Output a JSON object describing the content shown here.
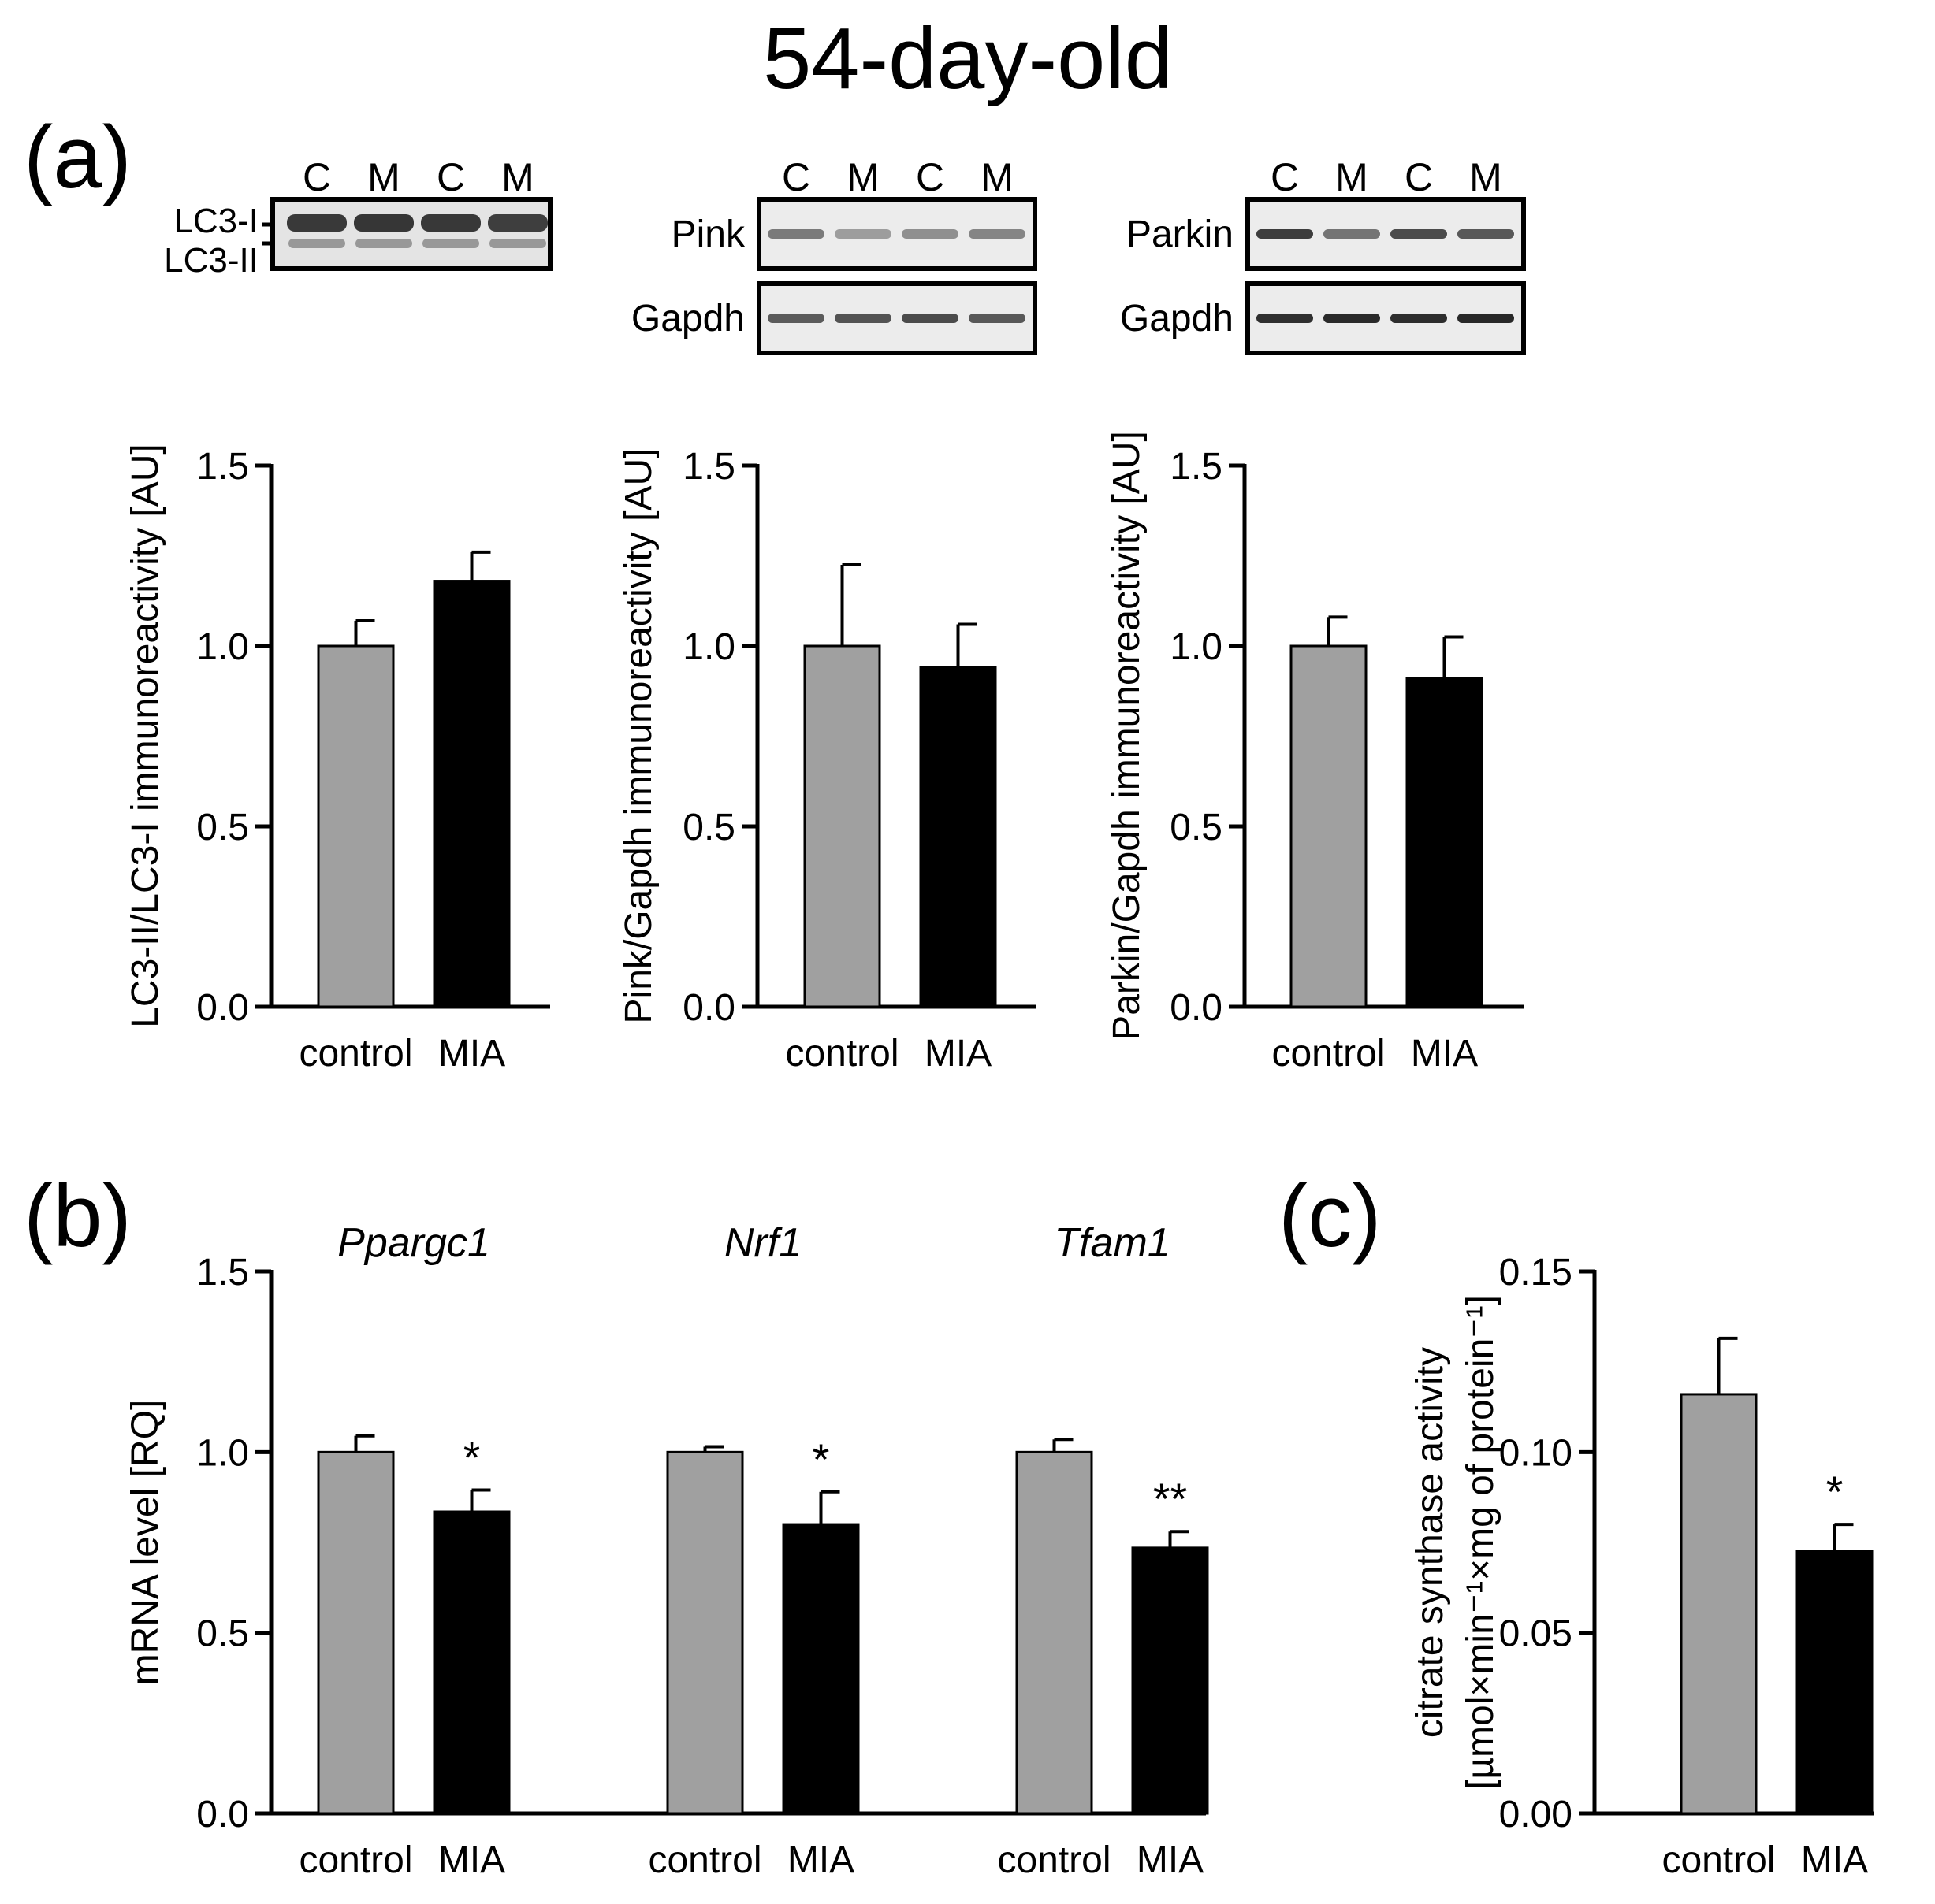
{
  "figure_title": "54-day-old",
  "panel_labels": {
    "a": "(a)",
    "b": "(b)",
    "c": "(c)"
  },
  "colors": {
    "control": "#a0a0a0",
    "mia": "#000000",
    "axis": "#000000"
  },
  "blots": [
    {
      "lanes": [
        "C",
        "M",
        "C",
        "M"
      ],
      "rows": [
        "LC3-I",
        "LC3-II"
      ],
      "layout": "double-band"
    },
    {
      "lanes": [
        "C",
        "M",
        "C",
        "M"
      ],
      "rows": [
        "Pink",
        "Gapdh"
      ],
      "layout": "stacked"
    },
    {
      "lanes": [
        "C",
        "M",
        "C",
        "M"
      ],
      "rows": [
        "Parkin",
        "Gapdh"
      ],
      "layout": "stacked"
    }
  ],
  "chart_data": [
    {
      "type": "bar",
      "panel": "a",
      "ylabel": "LC3-II/LC3-I immunoreactivity [AU]",
      "ylim": [
        0,
        1.5
      ],
      "yticks": [
        "0.0",
        "0.5",
        "1.0",
        "1.5"
      ],
      "groups": [
        {
          "gene": "",
          "categories": [
            "control",
            "MIA"
          ],
          "values": [
            1.0,
            1.18
          ],
          "errors": [
            0.07,
            0.08
          ],
          "marks": [
            "",
            ""
          ]
        }
      ]
    },
    {
      "type": "bar",
      "panel": "a",
      "ylabel": "Pink/Gapdh immunoreactivity [AU]",
      "ylim": [
        0,
        1.5
      ],
      "yticks": [
        "0.0",
        "0.5",
        "1.0",
        "1.5"
      ],
      "groups": [
        {
          "gene": "",
          "categories": [
            "control",
            "MIA"
          ],
          "values": [
            1.0,
            0.94
          ],
          "errors": [
            0.225,
            0.12
          ],
          "marks": [
            "",
            ""
          ]
        }
      ]
    },
    {
      "type": "bar",
      "panel": "a",
      "ylabel": "Parkin/Gapdh immunoreactivity [AU]",
      "ylim": [
        0,
        1.5
      ],
      "yticks": [
        "0.0",
        "0.5",
        "1.0",
        "1.5"
      ],
      "groups": [
        {
          "gene": "",
          "categories": [
            "control",
            "MIA"
          ],
          "values": [
            1.0,
            0.91
          ],
          "errors": [
            0.08,
            0.115
          ],
          "marks": [
            "",
            ""
          ]
        }
      ]
    },
    {
      "type": "bar",
      "panel": "b",
      "ylabel": "mRNA level [RQ]",
      "ylim": [
        0,
        1.5
      ],
      "yticks": [
        "0.0",
        "0.5",
        "1.0",
        "1.5"
      ],
      "groups": [
        {
          "gene": "Ppargc1",
          "categories": [
            "control",
            "MIA"
          ],
          "values": [
            1.0,
            0.835
          ],
          "errors": [
            0.045,
            0.06
          ],
          "marks": [
            "",
            "*"
          ]
        },
        {
          "gene": "Nrf1",
          "categories": [
            "control",
            "MIA"
          ],
          "values": [
            1.0,
            0.8
          ],
          "errors": [
            0.015,
            0.09
          ],
          "marks": [
            "",
            "*"
          ]
        },
        {
          "gene": "Tfam1",
          "categories": [
            "control",
            "MIA"
          ],
          "values": [
            1.0,
            0.735
          ],
          "errors": [
            0.035,
            0.045
          ],
          "marks": [
            "",
            "**"
          ]
        }
      ]
    },
    {
      "type": "bar",
      "panel": "c",
      "ylabel_lines": [
        "citrate synthase activity",
        "[µmol×min⁻¹×mg of protein⁻¹]"
      ],
      "ylim": [
        0,
        0.15
      ],
      "yticks": [
        "0.00",
        "0.05",
        "0.10",
        "0.15"
      ],
      "groups": [
        {
          "gene": "",
          "categories": [
            "control",
            "MIA"
          ],
          "values": [
            0.116,
            0.0725
          ],
          "errors": [
            0.0155,
            0.0075
          ],
          "marks": [
            "",
            "*"
          ]
        }
      ]
    }
  ]
}
